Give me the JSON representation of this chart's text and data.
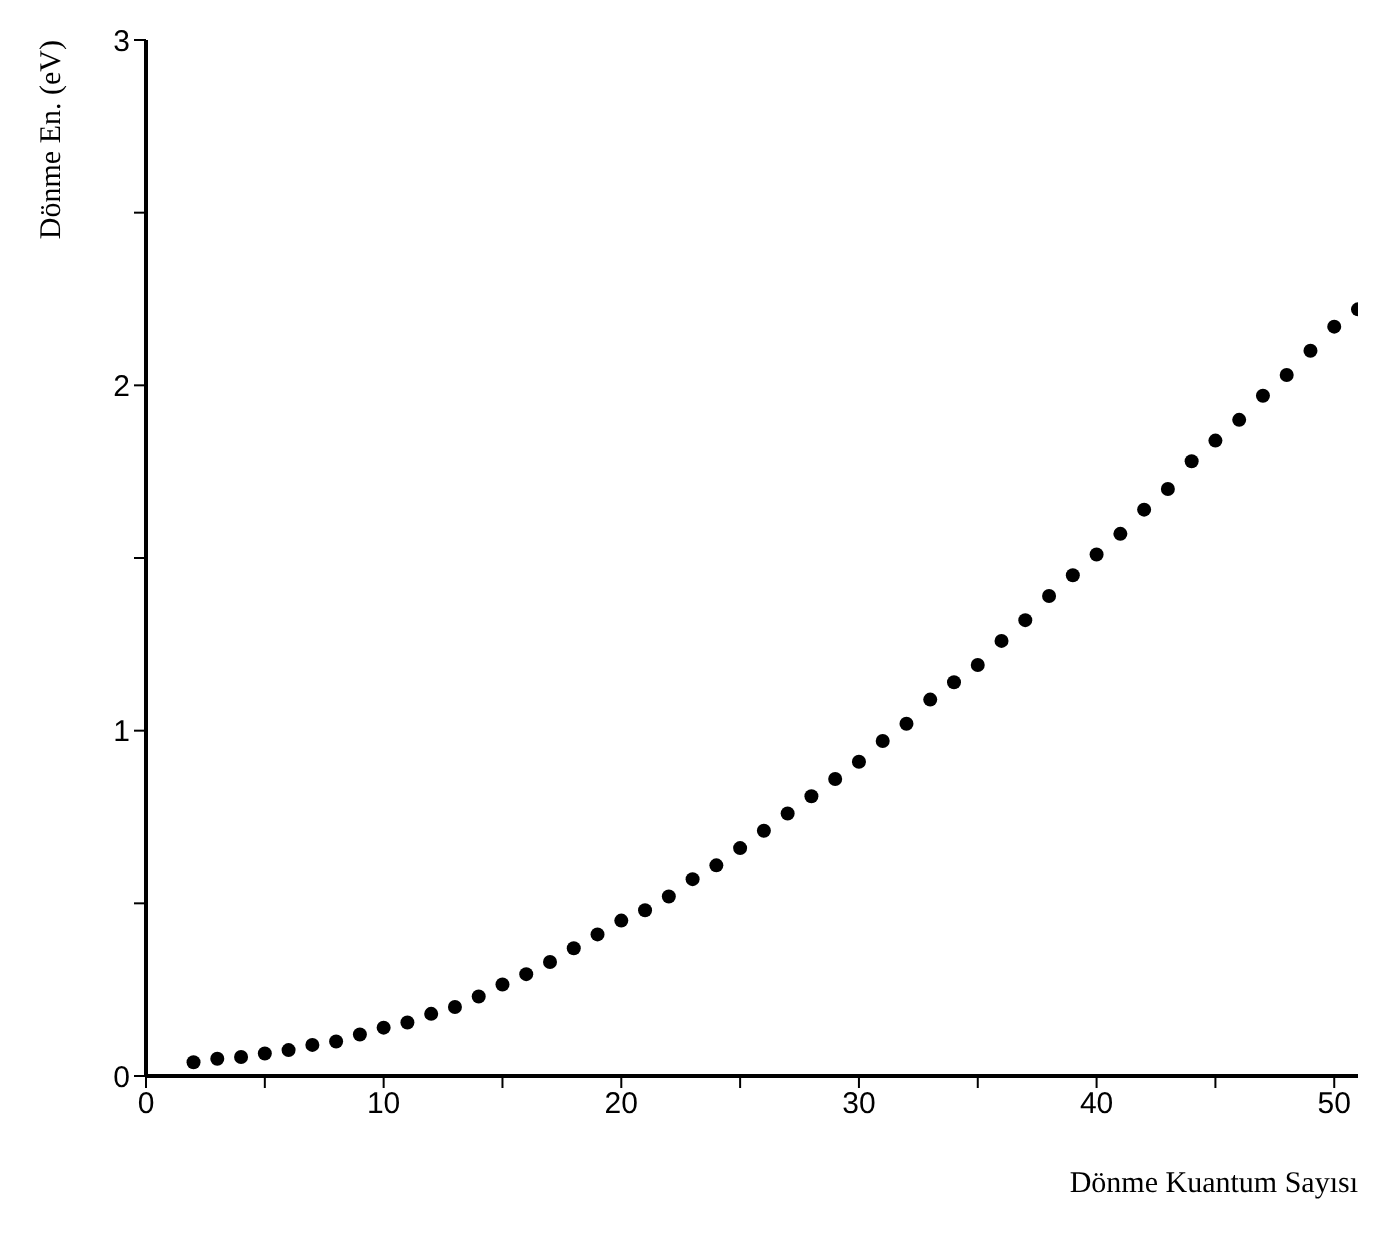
{
  "chart_data": {
    "type": "scatter",
    "xlabel": "Dönme Kuantum Sayısı",
    "ylabel": "Dönme En. (eV)",
    "x": [
      2,
      3,
      4,
      5,
      6,
      7,
      8,
      9,
      10,
      11,
      12,
      13,
      14,
      15,
      16,
      17,
      18,
      19,
      20,
      21,
      22,
      23,
      24,
      25,
      26,
      27,
      28,
      29,
      30,
      31,
      32,
      33,
      34,
      35,
      36,
      37,
      38,
      39,
      40,
      41,
      42,
      43,
      44,
      45,
      46,
      47,
      48,
      49,
      50,
      51
    ],
    "series": [
      {
        "color": "#000000",
        "values": [
          0.04,
          0.05,
          0.055,
          0.065,
          0.075,
          0.09,
          0.1,
          0.12,
          0.14,
          0.155,
          0.18,
          0.2,
          0.23,
          0.265,
          0.295,
          0.33,
          0.37,
          0.41,
          0.45,
          0.48,
          0.52,
          0.57,
          0.61,
          0.66,
          0.71,
          0.76,
          0.81,
          0.86,
          0.91,
          0.97,
          1.02,
          1.09,
          1.14,
          1.19,
          1.26,
          1.32,
          1.39,
          1.45,
          1.51,
          1.57,
          1.64,
          1.7,
          1.78,
          1.84,
          1.9,
          1.97,
          2.03,
          2.1,
          2.17,
          2.22
        ]
      }
    ],
    "xlim": [
      0,
      51
    ],
    "ylim": [
      0,
      3
    ],
    "xticks": [
      0,
      {
        "value": 5,
        "label": null
      },
      10,
      {
        "value": 15,
        "label": null
      },
      20,
      {
        "value": 25,
        "label": null
      },
      30,
      {
        "value": 35,
        "label": null
      },
      40,
      {
        "value": 45,
        "label": null
      },
      50
    ],
    "yticks": [
      0,
      {
        "value": 0.5,
        "label": null
      },
      1,
      {
        "value": 1.5,
        "label": null
      },
      2,
      {
        "value": 2.5,
        "label": null
      },
      3
    ],
    "grid": false,
    "legend": false,
    "marker": "circle"
  }
}
